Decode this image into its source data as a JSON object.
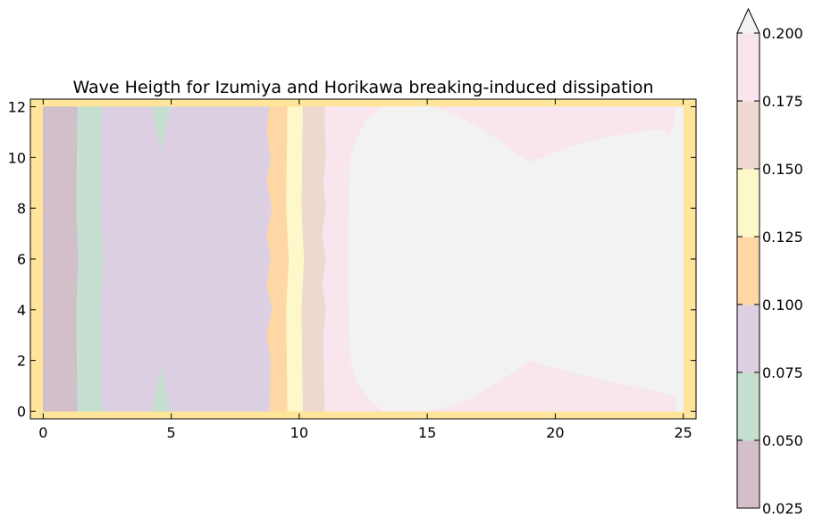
{
  "chart_data": {
    "type": "heatmap",
    "title": "Wave Heigth for Izumiya and Horikawa breaking-induced dissipation",
    "xlabel": "",
    "ylabel": "",
    "xlim": [
      -0.5,
      25.5
    ],
    "ylim": [
      -0.3,
      12.3
    ],
    "xticks": [
      "0",
      "5",
      "10",
      "15",
      "20",
      "25"
    ],
    "yticks": [
      "0",
      "2",
      "4",
      "6",
      "8",
      "10",
      "12"
    ],
    "grid": false,
    "colorbar": {
      "min": 0.025,
      "max": 0.2,
      "extend": "max",
      "ticks": [
        "0.025",
        "0.050",
        "0.075",
        "0.100",
        "0.125",
        "0.150",
        "0.175",
        "0.200"
      ],
      "levels": [
        {
          "range": [
            0.0,
            0.025
          ],
          "color": "#fee599"
        },
        {
          "range": [
            0.025,
            0.05
          ],
          "color": "#d3bfca"
        },
        {
          "range": [
            0.05,
            0.075
          ],
          "color": "#c5e0d0"
        },
        {
          "range": [
            0.075,
            0.1
          ],
          "color": "#dcd0e2"
        },
        {
          "range": [
            0.1,
            0.125
          ],
          "color": "#fed7a5"
        },
        {
          "range": [
            0.125,
            0.15
          ],
          "color": "#fcf8ca"
        },
        {
          "range": [
            0.15,
            0.175
          ],
          "color": "#eed8cf"
        },
        {
          "range": [
            0.175,
            0.2
          ],
          "color": "#f8e5ee"
        },
        {
          "range": [
            0.2,
            0.22
          ],
          "color": "#f2f2f2"
        }
      ]
    },
    "regions": [
      {
        "level": 0,
        "polygon": [
          [
            -0.5,
            -0.3
          ],
          [
            25.5,
            -0.3
          ],
          [
            25.5,
            12.3
          ],
          [
            -0.5,
            12.3
          ]
        ]
      },
      {
        "level": 1,
        "polygon": [
          [
            0,
            0
          ],
          [
            1.35,
            0
          ],
          [
            1.3,
            4
          ],
          [
            1.38,
            6
          ],
          [
            1.3,
            8
          ],
          [
            1.35,
            12
          ],
          [
            0,
            12
          ]
        ]
      },
      {
        "level": 2,
        "polygon": [
          [
            1.35,
            0
          ],
          [
            2.3,
            0
          ],
          [
            2.25,
            4
          ],
          [
            2.35,
            6
          ],
          [
            2.25,
            8
          ],
          [
            2.3,
            12
          ],
          [
            1.35,
            12
          ],
          [
            1.3,
            8
          ],
          [
            1.38,
            6
          ],
          [
            1.3,
            4
          ]
        ]
      },
      {
        "level": 3,
        "polygon": [
          [
            2.3,
            0
          ],
          [
            8.85,
            0
          ],
          [
            8.9,
            2
          ],
          [
            8.75,
            3
          ],
          [
            8.95,
            4
          ],
          [
            8.75,
            5
          ],
          [
            8.9,
            6
          ],
          [
            8.75,
            7
          ],
          [
            8.95,
            8
          ],
          [
            8.75,
            9
          ],
          [
            8.9,
            10
          ],
          [
            8.75,
            11
          ],
          [
            8.85,
            12
          ],
          [
            2.3,
            12
          ],
          [
            2.25,
            8
          ],
          [
            2.35,
            6
          ],
          [
            2.25,
            4
          ]
        ]
      },
      {
        "level": 2,
        "polygon": [
          [
            4.25,
            0
          ],
          [
            4.95,
            0
          ],
          [
            4.6,
            1.7
          ]
        ]
      },
      {
        "level": 2,
        "polygon": [
          [
            4.25,
            12
          ],
          [
            4.95,
            12
          ],
          [
            4.6,
            10.3
          ]
        ]
      },
      {
        "level": 4,
        "polygon": [
          [
            8.85,
            0
          ],
          [
            9.55,
            0
          ],
          [
            9.5,
            4
          ],
          [
            9.6,
            6
          ],
          [
            9.5,
            8
          ],
          [
            9.55,
            12
          ],
          [
            8.85,
            12
          ],
          [
            8.75,
            11
          ],
          [
            8.9,
            10
          ],
          [
            8.75,
            9
          ],
          [
            8.95,
            8
          ],
          [
            8.75,
            7
          ],
          [
            8.9,
            6
          ],
          [
            8.75,
            5
          ],
          [
            8.95,
            4
          ],
          [
            8.75,
            3
          ],
          [
            8.9,
            2
          ]
        ]
      },
      {
        "level": 5,
        "polygon": [
          [
            9.55,
            0
          ],
          [
            10.15,
            0
          ],
          [
            10.1,
            4
          ],
          [
            10.2,
            6
          ],
          [
            10.1,
            8
          ],
          [
            10.15,
            12
          ],
          [
            9.55,
            12
          ],
          [
            9.5,
            8
          ],
          [
            9.6,
            6
          ],
          [
            9.5,
            4
          ]
        ]
      },
      {
        "level": 6,
        "polygon": [
          [
            10.15,
            0
          ],
          [
            11.0,
            0
          ],
          [
            10.95,
            3
          ],
          [
            11.05,
            4
          ],
          [
            10.9,
            5
          ],
          [
            11.05,
            6
          ],
          [
            10.9,
            7
          ],
          [
            11.05,
            8
          ],
          [
            10.95,
            9
          ],
          [
            11.05,
            10
          ],
          [
            11.0,
            12
          ],
          [
            10.15,
            12
          ],
          [
            10.1,
            8
          ],
          [
            10.2,
            6
          ],
          [
            10.1,
            4
          ]
        ]
      },
      {
        "level": 7,
        "polygon": [
          [
            11.0,
            0
          ],
          [
            25.0,
            0
          ],
          [
            25.0,
            12
          ],
          [
            11.0,
            12
          ],
          [
            11.05,
            10
          ],
          [
            10.95,
            9
          ],
          [
            11.05,
            8
          ],
          [
            10.9,
            7
          ],
          [
            11.05,
            6
          ],
          [
            10.9,
            5
          ],
          [
            11.05,
            4
          ],
          [
            10.95,
            3
          ]
        ]
      },
      {
        "level": 8,
        "polygon": [
          [
            13.3,
            0
          ],
          [
            15.1,
            0
          ],
          [
            16.5,
            0.4
          ],
          [
            18.0,
            1.3
          ],
          [
            19.0,
            2.0
          ],
          [
            20.0,
            1.7
          ],
          [
            22.0,
            1.2
          ],
          [
            24.0,
            0.8
          ],
          [
            24.7,
            0.6
          ],
          [
            24.75,
            0
          ],
          [
            25.0,
            0
          ],
          [
            25.0,
            12
          ],
          [
            24.75,
            12
          ],
          [
            24.65,
            11.5
          ],
          [
            24.5,
            10.9
          ],
          [
            24.0,
            11.1
          ],
          [
            22.0,
            10.8
          ],
          [
            20.5,
            10.4
          ],
          [
            19.0,
            9.8
          ],
          [
            18.3,
            10.3
          ],
          [
            17.0,
            11.2
          ],
          [
            16.0,
            11.7
          ],
          [
            15.2,
            12
          ],
          [
            13.3,
            12
          ],
          [
            12.6,
            11.5
          ],
          [
            12.25,
            10.7
          ],
          [
            12.0,
            10.0
          ],
          [
            11.9,
            6
          ],
          [
            12.0,
            2.0
          ],
          [
            12.25,
            1.2
          ],
          [
            12.7,
            0.5
          ]
        ]
      }
    ]
  }
}
